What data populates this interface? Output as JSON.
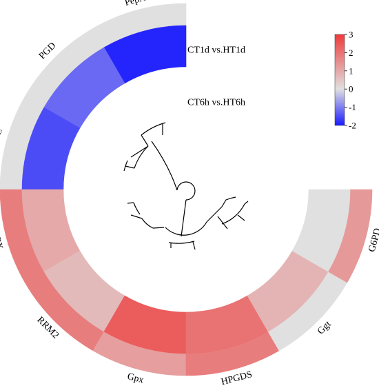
{
  "chart_data": {
    "type": "heatmap",
    "subtype": "circular-heatmap-with-dendrogram",
    "genes": [
      "PepA",
      "PGD",
      "ODC",
      "APX",
      "RRM2",
      "Gpx",
      "HPGDS",
      "Ggt",
      "G6PD"
    ],
    "series": [
      {
        "name": "CT1d vs.HT1d",
        "values": [
          0,
          0,
          0,
          1.8,
          1.8,
          1.2,
          1.8,
          0,
          1.3
        ]
      },
      {
        "name": "CT6h vs.HT6h",
        "values": [
          -1.9,
          -1.2,
          -1.5,
          1.0,
          0.7,
          2.4,
          2.0,
          0.8,
          0
        ]
      }
    ],
    "colorbar": {
      "min": -2,
      "max": 3,
      "ticks": [
        3,
        2,
        1,
        0,
        -1,
        -2
      ],
      "tick_labels": [
        "3",
        "2",
        "1",
        "0",
        "-1",
        "-2"
      ],
      "colors": {
        "low": "#1a1aff",
        "mid": "#e0e0e0",
        "high": "#ee3b3b"
      }
    },
    "arc_span_degrees": 270,
    "legend": "top-right"
  }
}
